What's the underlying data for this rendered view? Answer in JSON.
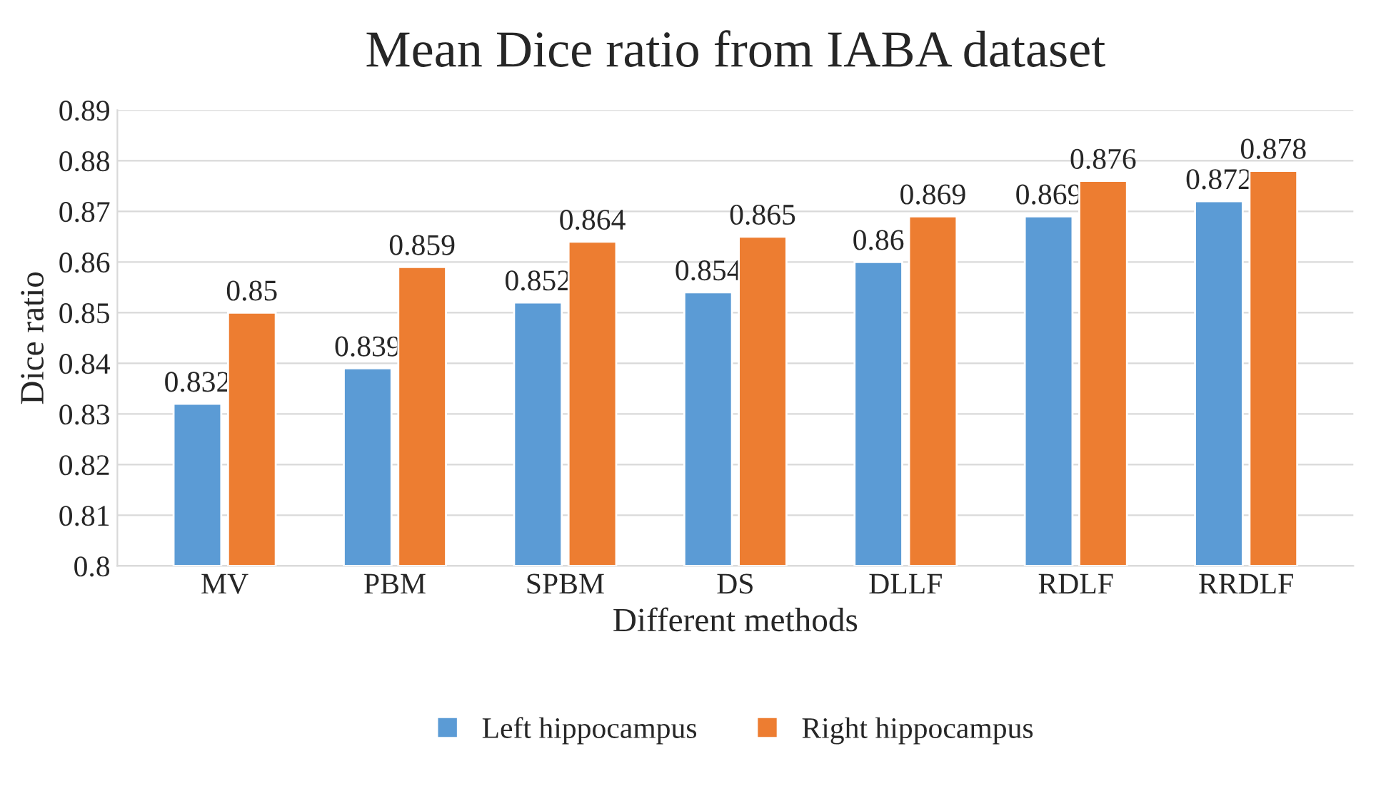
{
  "chart_data": {
    "type": "bar",
    "title": "Mean Dice ratio from IABA dataset",
    "xlabel": "Different methods",
    "ylabel": "Dice ratio",
    "categories": [
      "MV",
      "PBM",
      "SPBM",
      "DS",
      "DLLF",
      "RDLF",
      "RRDLF"
    ],
    "series": [
      {
        "name": "Left hippocampus",
        "color": "#5b9bd5",
        "values": [
          0.832,
          0.839,
          0.852,
          0.854,
          0.86,
          0.869,
          0.872
        ]
      },
      {
        "name": "Right hippocampus",
        "color": "#ed7d31",
        "values": [
          0.85,
          0.859,
          0.864,
          0.865,
          0.869,
          0.876,
          0.878
        ]
      }
    ],
    "ylim": [
      0.8,
      0.89
    ],
    "yticks": [
      0.8,
      0.81,
      0.82,
      0.83,
      0.84,
      0.85,
      0.86,
      0.87,
      0.88,
      0.89
    ],
    "grid": "y",
    "legend": "bottom",
    "data_labels": true
  }
}
